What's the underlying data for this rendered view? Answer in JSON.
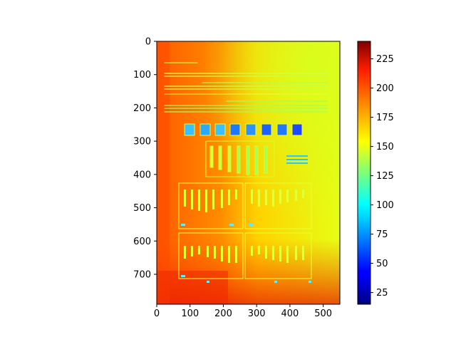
{
  "chart_data": {
    "type": "heatmap",
    "title": "",
    "xlabel": "",
    "ylabel": "",
    "xlim": [
      0,
      550
    ],
    "ylim": [
      790,
      0
    ],
    "x_ticks": [
      "0",
      "100",
      "200",
      "300",
      "400",
      "500"
    ],
    "y_ticks": [
      "0",
      "100",
      "200",
      "300",
      "400",
      "500",
      "600",
      "700"
    ],
    "colorbar": {
      "colormap": "jet",
      "range": [
        15,
        240
      ],
      "ticks": [
        "25",
        "50",
        "75",
        "100",
        "125",
        "150",
        "175",
        "200",
        "225"
      ]
    },
    "description_values": {
      "background_left": 205,
      "background_right": 160,
      "text_min": 60
    }
  }
}
